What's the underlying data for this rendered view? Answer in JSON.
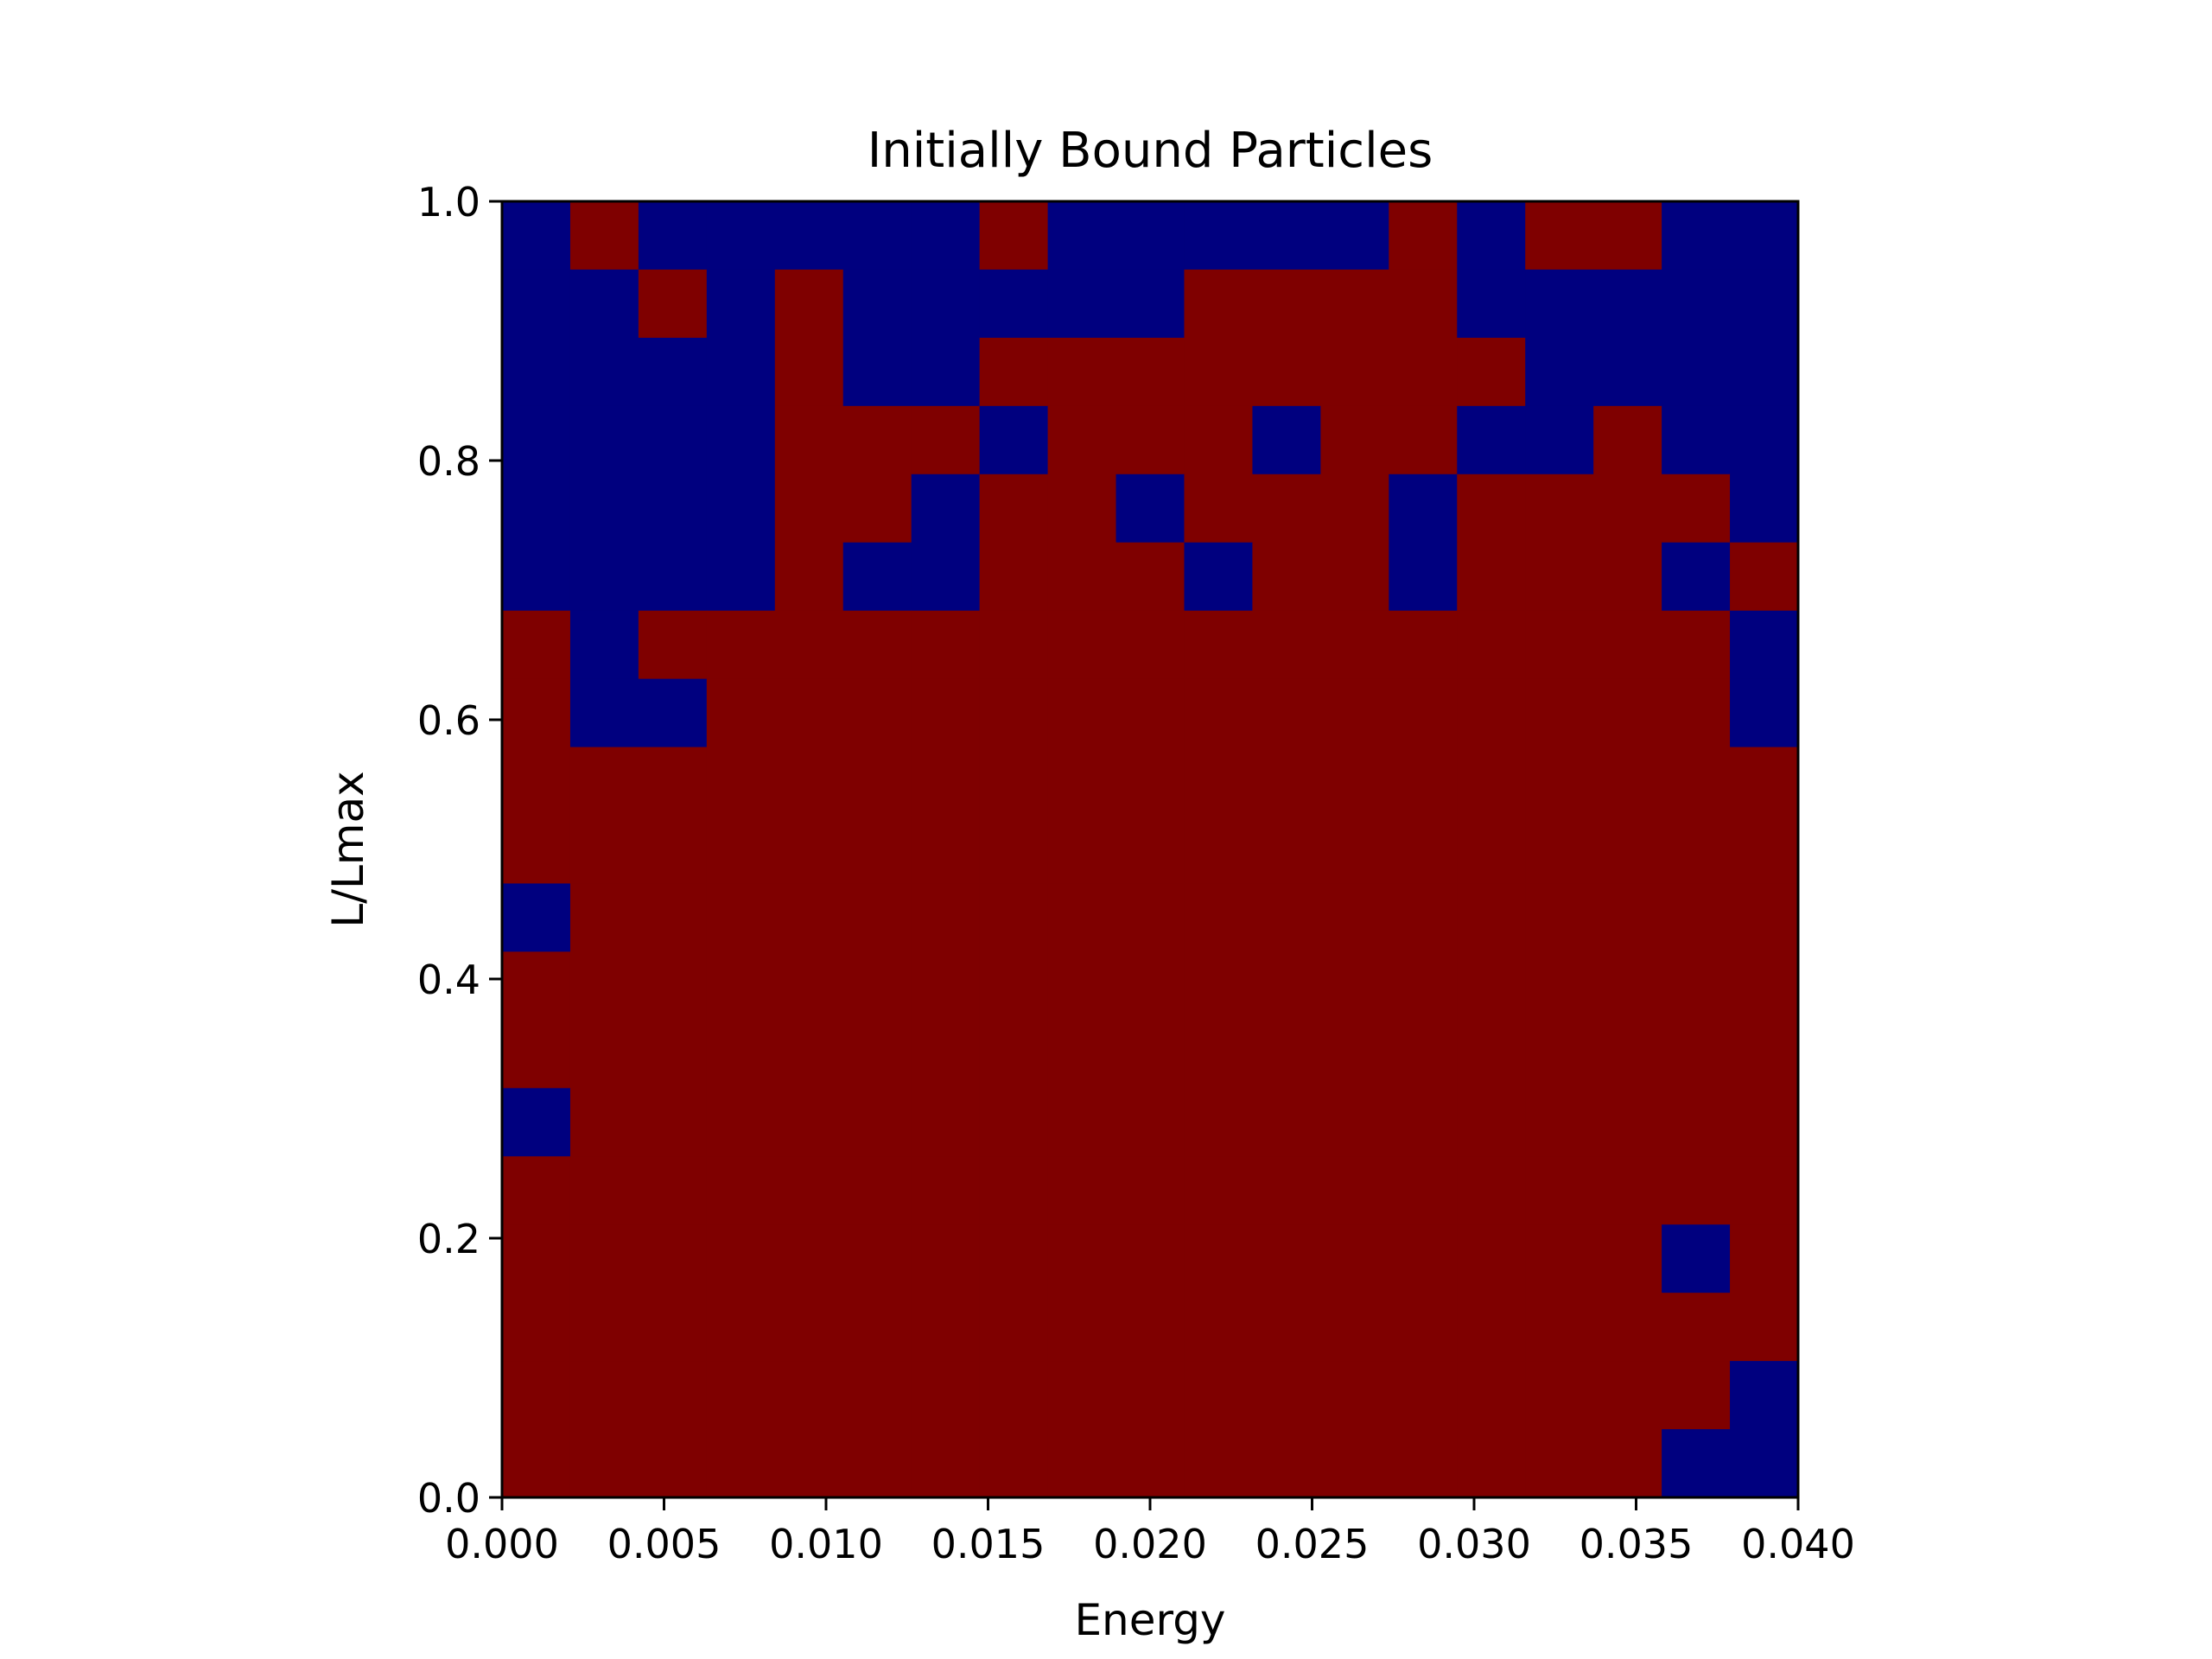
{
  "chart_data": {
    "type": "heatmap",
    "title": "Initially Bound Particles",
    "xlabel": "Energy",
    "ylabel": "L/Lmax",
    "xlim": [
      0.0,
      0.04
    ],
    "ylim": [
      0.0,
      1.0
    ],
    "x_tick_labels": [
      "0.000",
      "0.005",
      "0.010",
      "0.015",
      "0.020",
      "0.025",
      "0.030",
      "0.035",
      "0.040"
    ],
    "y_tick_labels": [
      "0.0",
      "0.2",
      "0.4",
      "0.6",
      "0.8",
      "1.0"
    ],
    "x_ticks": [
      0.0,
      0.005,
      0.01,
      0.015,
      0.02,
      0.025,
      0.03,
      0.035,
      0.04
    ],
    "y_ticks": [
      0.0,
      0.2,
      0.4,
      0.6,
      0.8,
      1.0
    ],
    "grid": false,
    "colormap": "jet",
    "colors": {
      "high": "#7f0000",
      "low": "#00007f"
    },
    "n_cols": 19,
    "n_rows": 19,
    "grid_values_top_to_bottom": [
      [
        0,
        1,
        0,
        0,
        0,
        0,
        0,
        1,
        0,
        0,
        0,
        0,
        0,
        1,
        0,
        1,
        1,
        0,
        0
      ],
      [
        0,
        0,
        1,
        0,
        1,
        0,
        0,
        0,
        0,
        0,
        1,
        1,
        1,
        1,
        0,
        0,
        0,
        0,
        0
      ],
      [
        0,
        0,
        0,
        0,
        1,
        0,
        0,
        1,
        1,
        1,
        1,
        1,
        1,
        1,
        1,
        0,
        0,
        0,
        0
      ],
      [
        0,
        0,
        0,
        0,
        1,
        1,
        1,
        0,
        1,
        1,
        1,
        0,
        1,
        1,
        0,
        0,
        1,
        0,
        0
      ],
      [
        0,
        0,
        0,
        0,
        1,
        1,
        0,
        1,
        1,
        0,
        1,
        1,
        1,
        0,
        1,
        1,
        1,
        1,
        0
      ],
      [
        0,
        0,
        0,
        0,
        1,
        0,
        0,
        1,
        1,
        1,
        0,
        1,
        1,
        0,
        1,
        1,
        1,
        0,
        1
      ],
      [
        1,
        0,
        1,
        1,
        1,
        1,
        1,
        1,
        1,
        1,
        1,
        1,
        1,
        1,
        1,
        1,
        1,
        1,
        0
      ],
      [
        1,
        0,
        0,
        1,
        1,
        1,
        1,
        1,
        1,
        1,
        1,
        1,
        1,
        1,
        1,
        1,
        1,
        1,
        0
      ],
      [
        1,
        1,
        1,
        1,
        1,
        1,
        1,
        1,
        1,
        1,
        1,
        1,
        1,
        1,
        1,
        1,
        1,
        1,
        1
      ],
      [
        1,
        1,
        1,
        1,
        1,
        1,
        1,
        1,
        1,
        1,
        1,
        1,
        1,
        1,
        1,
        1,
        1,
        1,
        1
      ],
      [
        0,
        1,
        1,
        1,
        1,
        1,
        1,
        1,
        1,
        1,
        1,
        1,
        1,
        1,
        1,
        1,
        1,
        1,
        1
      ],
      [
        1,
        1,
        1,
        1,
        1,
        1,
        1,
        1,
        1,
        1,
        1,
        1,
        1,
        1,
        1,
        1,
        1,
        1,
        1
      ],
      [
        1,
        1,
        1,
        1,
        1,
        1,
        1,
        1,
        1,
        1,
        1,
        1,
        1,
        1,
        1,
        1,
        1,
        1,
        1
      ],
      [
        0,
        1,
        1,
        1,
        1,
        1,
        1,
        1,
        1,
        1,
        1,
        1,
        1,
        1,
        1,
        1,
        1,
        1,
        1
      ],
      [
        1,
        1,
        1,
        1,
        1,
        1,
        1,
        1,
        1,
        1,
        1,
        1,
        1,
        1,
        1,
        1,
        1,
        1,
        1
      ],
      [
        1,
        1,
        1,
        1,
        1,
        1,
        1,
        1,
        1,
        1,
        1,
        1,
        1,
        1,
        1,
        1,
        1,
        0,
        1
      ],
      [
        1,
        1,
        1,
        1,
        1,
        1,
        1,
        1,
        1,
        1,
        1,
        1,
        1,
        1,
        1,
        1,
        1,
        1,
        1
      ],
      [
        1,
        1,
        1,
        1,
        1,
        1,
        1,
        1,
        1,
        1,
        1,
        1,
        1,
        1,
        1,
        1,
        1,
        1,
        0
      ],
      [
        1,
        1,
        1,
        1,
        1,
        1,
        1,
        1,
        1,
        1,
        1,
        1,
        1,
        1,
        1,
        1,
        1,
        0,
        0
      ]
    ]
  }
}
